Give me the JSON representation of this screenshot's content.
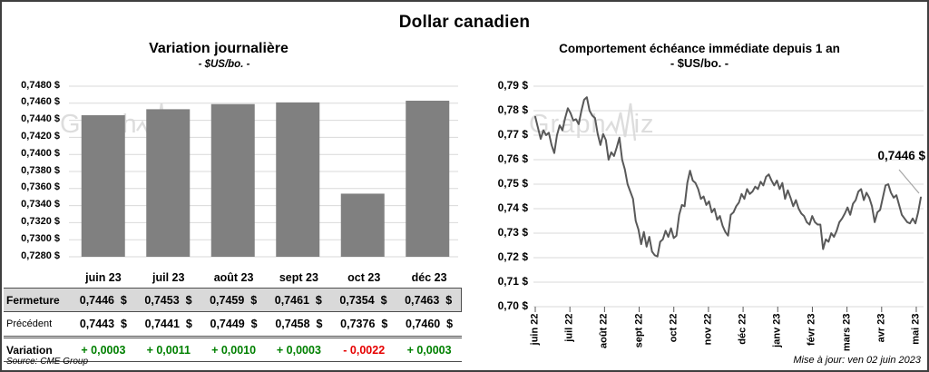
{
  "header": {
    "title": "Dollar canadien"
  },
  "footer": {
    "source": "Source: CME Group",
    "updated": "Mise à jour: ven 02 juin 2023"
  },
  "watermark": {
    "part1": "Graph",
    "part2": "iz"
  },
  "colors": {
    "bar": "#808080",
    "line": "#595959",
    "grid": "#d9d9d9",
    "table_band": "#d9d9d9",
    "positive": "#008000",
    "negative": "#e60000",
    "leader": "#a6a6a6",
    "tick": "#595959",
    "watermark": "#c3c3c3"
  },
  "table": {
    "columns": [
      "juin 23",
      "juil 23",
      "août 23",
      "sept 23",
      "oct 23",
      "déc 23"
    ],
    "rows": [
      {
        "label": "Fermeture",
        "style": "close",
        "values": [
          "0,7446  $",
          "0,7453  $",
          "0,7459  $",
          "0,7461  $",
          "0,7354  $",
          "0,7463  $"
        ]
      },
      {
        "label": "Précédent",
        "style": "prev",
        "values": [
          "0,7443  $",
          "0,7441  $",
          "0,7449  $",
          "0,7458  $",
          "0,7376  $",
          "0,7460  $"
        ]
      },
      {
        "label": "Variation",
        "style": "var",
        "values": [
          "+ 0,0003",
          "+ 0,0011",
          "+ 0,0010",
          "+ 0,0003",
          "- 0,0022",
          "+ 0,0003"
        ],
        "signs": [
          "pos",
          "pos",
          "pos",
          "pos",
          "neg",
          "pos"
        ]
      }
    ]
  },
  "chart_data": [
    {
      "id": "variation-journaliere",
      "type": "bar",
      "title": "Variation journalière",
      "subtitle": "- $US/bo. -",
      "categories": [
        "juin 23",
        "juil 23",
        "août 23",
        "sept 23",
        "oct 23",
        "déc 23"
      ],
      "values": [
        0.7446,
        0.7453,
        0.7459,
        0.7461,
        0.7354,
        0.7463
      ],
      "ylim": [
        0.728,
        0.748
      ],
      "ytick_step": 0.002,
      "ytick_labels": [
        "0,7480 $",
        "0,7460 $",
        "0,7440 $",
        "0,7420 $",
        "0,7400 $",
        "0,7380 $",
        "0,7360 $",
        "0,7340 $",
        "0,7320 $",
        "0,7300 $",
        "0,7280 $"
      ],
      "grid": true,
      "legend": "none"
    },
    {
      "id": "comportement-1-an",
      "type": "line",
      "title": "Comportement échéance immédiate depuis 1 an",
      "subtitle": "- $US/bo. -",
      "x_labels": [
        "juin 22",
        "juil 22",
        "août 22",
        "sept 22",
        "oct 22",
        "nov 22",
        "déc 22",
        "janv 23",
        "févr 23",
        "mars 23",
        "avr 23",
        "mai 23"
      ],
      "ylim": [
        0.7,
        0.79
      ],
      "ytick_step": 0.01,
      "ytick_labels": [
        "0,79 $",
        "0,78 $",
        "0,77 $",
        "0,76 $",
        "0,75 $",
        "0,74 $",
        "0,73 $",
        "0,72 $",
        "0,71 $",
        "0,70 $"
      ],
      "grid": true,
      "legend": "none",
      "last_value": 0.7446,
      "last_value_label": "0,7446 $",
      "values": [
        0.7775,
        0.773,
        0.7685,
        0.772,
        0.77,
        0.771,
        0.766,
        0.7627,
        0.77,
        0.774,
        0.772,
        0.777,
        0.781,
        0.779,
        0.776,
        0.7765,
        0.7745,
        0.78,
        0.7845,
        0.7855,
        0.78,
        0.778,
        0.777,
        0.7705,
        0.766,
        0.7705,
        0.768,
        0.76,
        0.763,
        0.7615,
        0.765,
        0.769,
        0.76,
        0.756,
        0.75,
        0.747,
        0.744,
        0.735,
        0.7315,
        0.7255,
        0.7305,
        0.7245,
        0.7285,
        0.7225,
        0.721,
        0.7205,
        0.7265,
        0.7275,
        0.731,
        0.7285,
        0.732,
        0.728,
        0.729,
        0.7375,
        0.7415,
        0.741,
        0.7505,
        0.7555,
        0.7515,
        0.7505,
        0.748,
        0.744,
        0.745,
        0.7415,
        0.743,
        0.7385,
        0.74,
        0.7355,
        0.737,
        0.733,
        0.7305,
        0.729,
        0.7375,
        0.7385,
        0.741,
        0.7425,
        0.746,
        0.744,
        0.748,
        0.746,
        0.747,
        0.749,
        0.748,
        0.751,
        0.7495,
        0.753,
        0.754,
        0.7515,
        0.7495,
        0.7515,
        0.748,
        0.7505,
        0.744,
        0.7475,
        0.7445,
        0.741,
        0.7435,
        0.74,
        0.738,
        0.737,
        0.7345,
        0.7335,
        0.737,
        0.7345,
        0.7335,
        0.7335,
        0.7235,
        0.7275,
        0.7265,
        0.73,
        0.7285,
        0.731,
        0.7345,
        0.736,
        0.738,
        0.7405,
        0.7375,
        0.742,
        0.7435,
        0.747,
        0.748,
        0.7435,
        0.7465,
        0.7445,
        0.741,
        0.7345,
        0.7385,
        0.7395,
        0.7445,
        0.7495,
        0.75,
        0.7465,
        0.7445,
        0.7455,
        0.7415,
        0.7375,
        0.736,
        0.7345,
        0.734,
        0.736,
        0.734,
        0.7385,
        0.7446
      ]
    }
  ]
}
